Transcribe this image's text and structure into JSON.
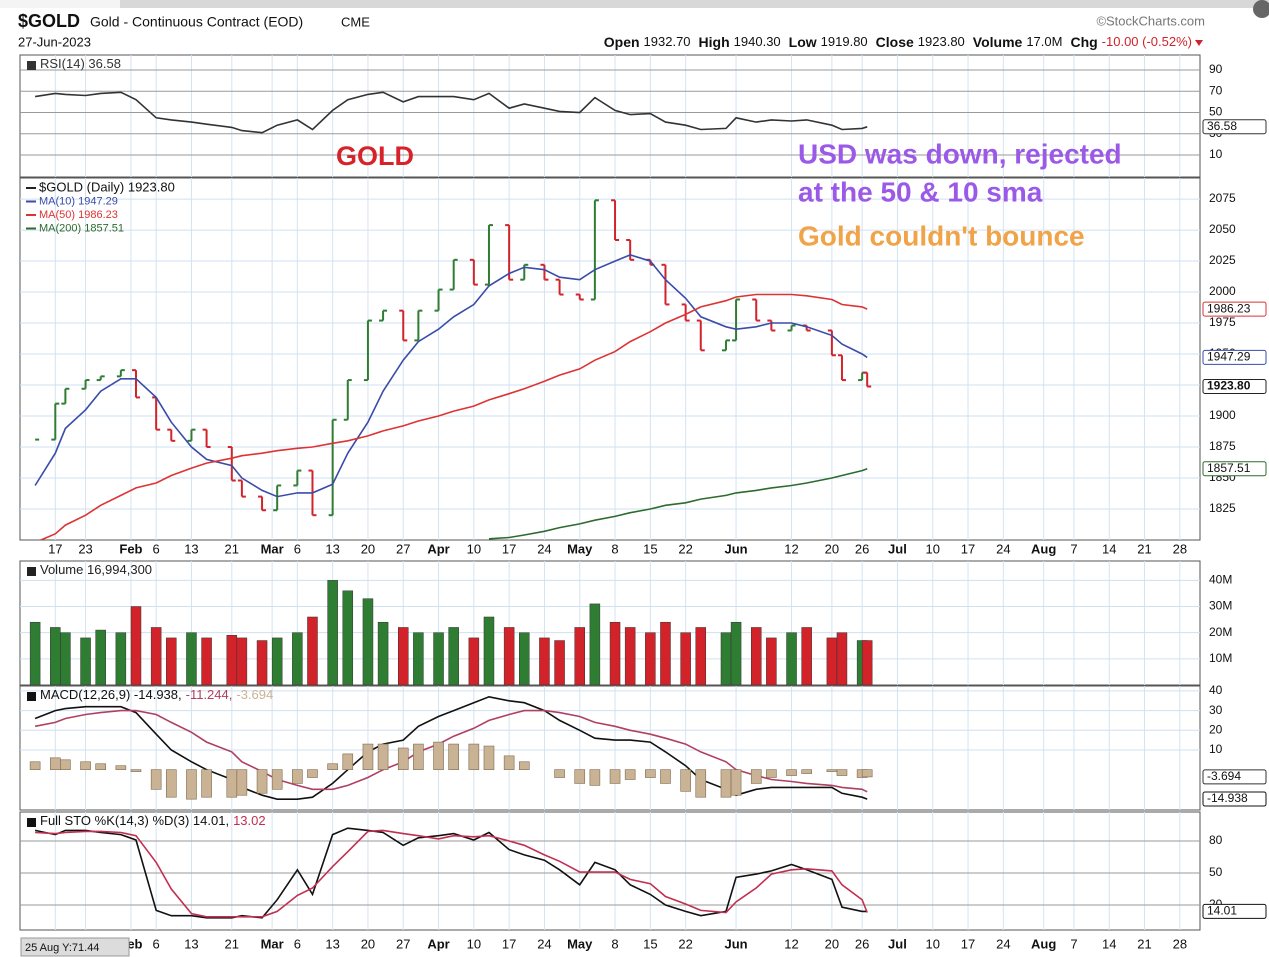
{
  "header": {
    "symbol": "$GOLD",
    "name": "Gold - Continuous Contract (EOD)",
    "exchange": "CME",
    "date": "27-Jun-2023",
    "source": "©StockCharts.com",
    "quote": [
      {
        "label": "Open",
        "value": "1932.70"
      },
      {
        "label": "High",
        "value": "1940.30"
      },
      {
        "label": "Low",
        "value": "1919.80"
      },
      {
        "label": "Close",
        "value": "1923.80"
      },
      {
        "label": "Volume",
        "value": "17.0M"
      },
      {
        "label": "Chg",
        "value": "-10.00 (-0.52%)"
      }
    ]
  },
  "annotations": {
    "gold": "GOLD",
    "usd_line1": "USD was down, rejected",
    "usd_line2": "at the 50 & 10 sma",
    "bounce": "Gold couldn't bounce"
  },
  "cursor_label": "25 Aug Y:71.44",
  "chart_data": {
    "type": "stock",
    "x": [
      "2023-01-13",
      "2023-01-17",
      "2023-01-19",
      "2023-01-23",
      "2023-01-26",
      "2023-01-30",
      "2023-02-02",
      "2023-02-06",
      "2023-02-09",
      "2023-02-13",
      "2023-02-16",
      "2023-02-21",
      "2023-02-23",
      "2023-02-27",
      "2023-03-02",
      "2023-03-06",
      "2023-03-09",
      "2023-03-13",
      "2023-03-16",
      "2023-03-20",
      "2023-03-23",
      "2023-03-27",
      "2023-03-30",
      "2023-04-03",
      "2023-04-06",
      "2023-04-10",
      "2023-04-13",
      "2023-04-17",
      "2023-04-20",
      "2023-04-24",
      "2023-04-27",
      "2023-05-01",
      "2023-05-04",
      "2023-05-08",
      "2023-05-11",
      "2023-05-15",
      "2023-05-18",
      "2023-05-22",
      "2023-05-25",
      "2023-05-30",
      "2023-06-01",
      "2023-06-05",
      "2023-06-08",
      "2023-06-12",
      "2023-06-15",
      "2023-06-20",
      "2023-06-22",
      "2023-06-26",
      "2023-06-27"
    ],
    "xlim": [
      "2023-01-10",
      "2023-09-01"
    ],
    "xticks": [
      {
        "value": "2023-01-17",
        "label": "17"
      },
      {
        "value": "2023-01-23",
        "label": "23"
      },
      {
        "value": "2023-02-01",
        "label": "Feb"
      },
      {
        "value": "2023-02-06",
        "label": "6"
      },
      {
        "value": "2023-02-13",
        "label": "13"
      },
      {
        "value": "2023-02-21",
        "label": "21"
      },
      {
        "value": "2023-03-01",
        "label": "Mar"
      },
      {
        "value": "2023-03-06",
        "label": "6"
      },
      {
        "value": "2023-03-13",
        "label": "13"
      },
      {
        "value": "2023-03-20",
        "label": "20"
      },
      {
        "value": "2023-03-27",
        "label": "27"
      },
      {
        "value": "2023-04-03",
        "label": "Apr"
      },
      {
        "value": "2023-04-10",
        "label": "10"
      },
      {
        "value": "2023-04-17",
        "label": "17"
      },
      {
        "value": "2023-04-24",
        "label": "24"
      },
      {
        "value": "2023-05-01",
        "label": "May"
      },
      {
        "value": "2023-05-08",
        "label": "8"
      },
      {
        "value": "2023-05-15",
        "label": "15"
      },
      {
        "value": "2023-05-22",
        "label": "22"
      },
      {
        "value": "2023-06-01",
        "label": "Jun"
      },
      {
        "value": "2023-06-12",
        "label": "12"
      },
      {
        "value": "2023-06-20",
        "label": "20"
      },
      {
        "value": "2023-06-26",
        "label": "26"
      },
      {
        "value": "2023-07-03",
        "label": "Jul"
      },
      {
        "value": "2023-07-10",
        "label": "10"
      },
      {
        "value": "2023-07-17",
        "label": "17"
      },
      {
        "value": "2023-07-24",
        "label": "24"
      },
      {
        "value": "2023-08-01",
        "label": "Aug"
      },
      {
        "value": "2023-08-07",
        "label": "7"
      },
      {
        "value": "2023-08-14",
        "label": "14"
      },
      {
        "value": "2023-08-21",
        "label": "21"
      },
      {
        "value": "2023-08-28",
        "label": "28"
      }
    ],
    "panels": [
      {
        "legend_layout": "inline",
        "grid_color": "#9a9a9a",
        "ylim": [
          -10.7,
          104.1
        ],
        "yticks": [
          10,
          30,
          50,
          70,
          90
        ],
        "series": [
          {
            "legend": "RSI(14) 36.58",
            "style": "line",
            "color": "#333333",
            "last_box": true,
            "values": [
              65,
              68,
              67,
              66,
              68,
              69,
              62,
              45,
              43,
              41,
              39,
              36,
              33,
              31,
              38,
              43,
              34,
              52,
              62,
              67,
              69,
              60,
              65,
              65,
              65,
              62,
              68,
              54,
              58,
              54,
              51,
              50,
              64,
              52,
              48,
              49,
              41,
              38,
              34,
              35,
              45,
              41,
              43,
              42,
              43,
              38,
              34,
              35,
              36.58
            ]
          }
        ]
      },
      {
        "legend_layout": "stacked",
        "grid_color": "#cfe0f0",
        "ylim": [
          1800,
          2092
        ],
        "yticks": [
          1825,
          1850,
          1875,
          1900,
          1925,
          1950,
          1975,
          2000,
          2025,
          2050,
          2075
        ],
        "series": [
          {
            "legend": "$GOLD (Daily) 1923.80",
            "style": "bars",
            "color": "#222222",
            "up_color": "#2f7d32",
            "down_color": "#d2232a",
            "last_box": true,
            "last_label": "1923.80",
            "values": [
              1881,
              1910,
              1922,
              1929,
              1932,
              1937,
              1915,
              1889,
              1880,
              1889,
              1875,
              1848,
              1835,
              1824,
              1844,
              1856,
              1820,
              1897,
              1929,
              1977,
              1985,
              1961,
              1985,
              2002,
              2026,
              2006,
              2054,
              2010,
              2022,
              2010,
              1998,
              1994,
              2074,
              2042,
              2026,
              2022,
              1990,
              1977,
              1953,
              1961,
              1994,
              1977,
              1969,
              1973,
              1969,
              1949,
              1929,
              1935,
              1923.8
            ]
          },
          {
            "legend": "MA(10) 1947.29",
            "style": "line",
            "color": "#3a4ca8",
            "last_box": true,
            "values": [
              1844,
              1870,
              1890,
              1905,
              1920,
              1930,
              1930,
              1915,
              1895,
              1875,
              1865,
              1860,
              1850,
              1840,
              1835,
              1838,
              1838,
              1845,
              1870,
              1895,
              1920,
              1945,
              1960,
              1970,
              1980,
              1990,
              2005,
              2015,
              2020,
              2018,
              2012,
              2010,
              2018,
              2025,
              2030,
              2025,
              2010,
              1995,
              1980,
              1972,
              1970,
              1972,
              1975,
              1975,
              1972,
              1965,
              1958,
              1950,
              1947.29
            ]
          },
          {
            "legend": "MA(50) 1986.23",
            "style": "line",
            "color": "#dd3333",
            "last_box": true,
            "values": [
              1798,
              1805,
              1812,
              1820,
              1828,
              1836,
              1842,
              1846,
              1852,
              1858,
              1862,
              1866,
              1868,
              1870,
              1872,
              1874,
              1875,
              1878,
              1880,
              1884,
              1888,
              1892,
              1896,
              1900,
              1904,
              1908,
              1913,
              1918,
              1922,
              1928,
              1933,
              1938,
              1945,
              1952,
              1960,
              1968,
              1975,
              1982,
              1988,
              1993,
              1996,
              1998,
              1998,
              1998,
              1997,
              1994,
              1990,
              1988,
              1986.23
            ]
          },
          {
            "legend": "MA(200) 1857.51",
            "style": "line",
            "color": "#2e6b2e",
            "last_box": true,
            "values": [
              null,
              null,
              null,
              null,
              null,
              null,
              null,
              null,
              null,
              null,
              null,
              null,
              null,
              null,
              null,
              null,
              null,
              null,
              null,
              null,
              null,
              null,
              null,
              null,
              null,
              null,
              1801,
              1802,
              1804,
              1807,
              1810,
              1813,
              1816,
              1819,
              1822,
              1825,
              1828,
              1830,
              1833,
              1836,
              1838,
              1840,
              1842,
              1844,
              1846,
              1850,
              1852,
              1856,
              1857.51
            ]
          }
        ]
      },
      {
        "legend_layout": "inline",
        "grid_color": "#cfe0f0",
        "ylim": [
          0,
          47400000
        ],
        "yticks": [
          {
            "value": 10000000,
            "label": "10M"
          },
          {
            "value": 20000000,
            "label": "20M"
          },
          {
            "value": 30000000,
            "label": "30M"
          },
          {
            "value": 40000000,
            "label": "40M"
          }
        ],
        "series": [
          {
            "legend": "Volume 16,994,300",
            "style": "volume",
            "color": "#222222",
            "values": [
              24000000,
              22000000,
              20000000,
              18000000,
              21000000,
              20000000,
              30000000,
              22000000,
              18000000,
              20000000,
              18000000,
              19000000,
              18000000,
              17000000,
              18000000,
              20000000,
              26000000,
              40000000,
              36000000,
              33000000,
              24000000,
              22000000,
              20000000,
              20000000,
              22000000,
              18000000,
              26000000,
              22000000,
              20000000,
              18000000,
              17000000,
              22000000,
              31000000,
              24000000,
              22000000,
              20000000,
              24000000,
              20000000,
              22000000,
              20000000,
              24000000,
              22000000,
              18000000,
              20000000,
              22000000,
              18000000,
              20000000,
              17000000,
              16994300
            ]
          }
        ]
      },
      {
        "legend_layout": "inline",
        "grid_color": "#cfe0f0",
        "ylim": [
          -20.5,
          42.5
        ],
        "yticks": [
          10,
          20,
          30,
          40
        ],
        "series": [
          {
            "legend": "MACD(12,26,9) -14.938,",
            "style": "line",
            "color": "#111111",
            "last_box": true,
            "values": [
              26,
              30,
              31,
              32,
              32,
              32,
              29,
              18,
              10,
              4,
              0,
              -5,
              -9,
              -13,
              -15,
              -15,
              -14,
              -7,
              0,
              9,
              13,
              15,
              22,
              27,
              30,
              34,
              37,
              35,
              34,
              30,
              25,
              20,
              16,
              15,
              15,
              14,
              9,
              2,
              -5,
              -10,
              -13,
              -10,
              -9,
              -9,
              -9,
              -9,
              -12,
              -14,
              -14.938
            ]
          },
          {
            "legend": "-11.244,",
            "style": "line",
            "color": "#b04060",
            "values": [
              22,
              24,
              26,
              28,
              29,
              30,
              30,
              28,
              24,
              19,
              14,
              9,
              4,
              -1,
              -5,
              -8,
              -10,
              -10,
              -8,
              -4,
              0,
              4,
              9,
              13,
              17,
              21,
              25,
              28,
              30,
              30,
              29,
              27,
              24,
              22,
              20,
              18,
              16,
              13,
              9,
              4,
              0,
              -3,
              -5,
              -6,
              -7,
              -8,
              -9,
              -10,
              -11.244
            ]
          },
          {
            "legend": "-3.694",
            "style": "histogram",
            "color": "#c9b394",
            "last_box": true,
            "values": [
              4,
              6,
              5,
              4,
              3,
              2,
              -1,
              -10,
              -14,
              -15,
              -14,
              -14,
              -13,
              -12,
              -10,
              -7,
              -4,
              3,
              8,
              13,
              13,
              11,
              13,
              14,
              13,
              13,
              12,
              7,
              4,
              0,
              -4,
              -7,
              -8,
              -7,
              -5,
              -4,
              -7,
              -11,
              -14,
              -14,
              -13,
              -7,
              -4,
              -3,
              -2,
              -1,
              -3,
              -4,
              -3.694
            ]
          }
        ]
      },
      {
        "legend_layout": "inline",
        "grid_color": "#9a9a9a",
        "ylim": [
          -3.4,
          107.2
        ],
        "yticks": [
          20,
          50,
          80
        ],
        "series": [
          {
            "legend": "Full STO %K(14,3) %D(3) 14.01,",
            "style": "line",
            "color": "#111111",
            "last_box": true,
            "values": [
              90,
              86,
              90,
              90,
              88,
              86,
              81,
              15,
              10,
              10,
              8,
              8,
              10,
              8,
              25,
              53,
              30,
              86,
              92,
              90,
              88,
              76,
              83,
              85,
              87,
              81,
              88,
              72,
              67,
              62,
              53,
              39,
              60,
              53,
              39,
              30,
              20,
              14,
              10,
              14,
              46,
              49,
              52,
              58,
              53,
              44,
              18,
              14,
              14.01
            ]
          },
          {
            "legend": "13.02",
            "style": "line",
            "color": "#c03050",
            "values": [
              88,
              87,
              88,
              89,
              89,
              88,
              85,
              60,
              35,
              12,
              9,
              9,
              9,
              9,
              14,
              29,
              36,
              56,
              70,
              89,
              90,
              87,
              85,
              82,
              85,
              84,
              85,
              80,
              76,
              67,
              61,
              51,
              51,
              51,
              44,
              40,
              28,
              21,
              15,
              13,
              23,
              36,
              49,
              53,
              54,
              52,
              39,
              25,
              13.02
            ]
          }
        ]
      }
    ]
  }
}
